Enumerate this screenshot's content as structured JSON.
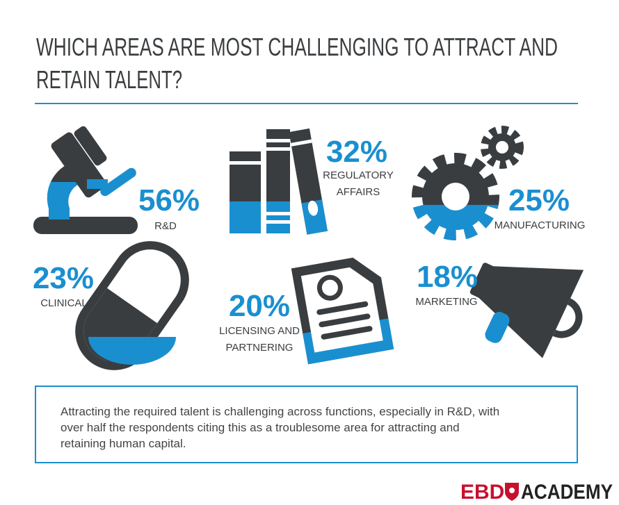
{
  "title_lines": [
    "WHICH AREAS ARE MOST CHALLENGING TO ATTRACT AND",
    "RETAIN TALENT?"
  ],
  "items": [
    {
      "value": "56%",
      "label_lines": [
        "R&D"
      ]
    },
    {
      "value": "32%",
      "label_lines": [
        "REGULATORY",
        "AFFAIRS"
      ]
    },
    {
      "value": "25%",
      "label_lines": [
        "MANUFACTURING"
      ]
    },
    {
      "value": "23%",
      "label_lines": [
        "CLINICAL"
      ]
    },
    {
      "value": "20%",
      "label_lines": [
        "LICENSING AND",
        "PARTNERING"
      ]
    },
    {
      "value": "18%",
      "label_lines": [
        "MARKETING"
      ]
    }
  ],
  "note_lines": [
    "Attracting the required talent is challenging across functions, especially in R&D, with",
    "over half the respondents citing this as a troublesome area for attracting and",
    "retaining human capital."
  ],
  "logo": {
    "left": "EBD",
    "right": "ACADEMY"
  }
}
